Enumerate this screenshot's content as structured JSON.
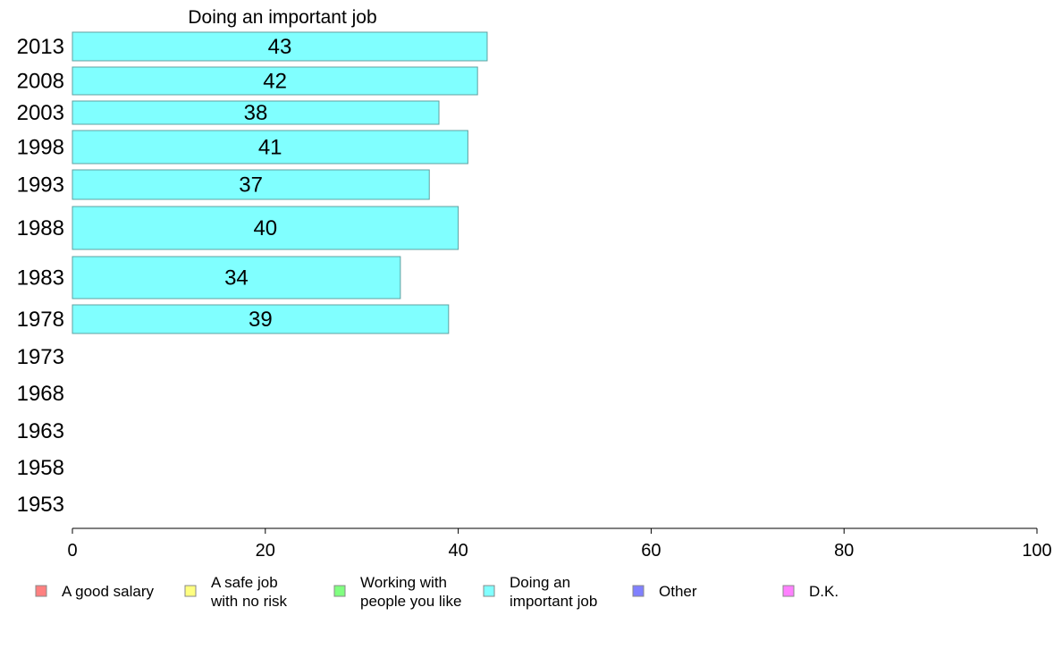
{
  "chart_data": {
    "type": "bar",
    "orientation": "horizontal",
    "title": "Doing an important job",
    "categories": [
      "2013",
      "2008",
      "2003",
      "1998",
      "1993",
      "1988",
      "1983",
      "1978",
      "1973",
      "1968",
      "1963",
      "1958",
      "1953"
    ],
    "series": [
      {
        "name": "Doing an important job",
        "color": "#80ffff",
        "values": [
          43,
          42,
          38,
          41,
          37,
          40,
          34,
          39,
          null,
          null,
          null,
          null,
          null
        ]
      }
    ],
    "xlim": [
      0,
      100
    ],
    "xticks": [
      "0",
      "20",
      "40",
      "60",
      "80",
      "100"
    ],
    "grid": false,
    "legend_position": "bottom",
    "legend": [
      {
        "label": [
          "A good salary"
        ],
        "color": "#ff8080"
      },
      {
        "label": [
          "A safe job",
          "with no risk"
        ],
        "color": "#ffff80"
      },
      {
        "label": [
          "Working with",
          "people you like"
        ],
        "color": "#80ff80"
      },
      {
        "label": [
          "Doing an",
          "important job"
        ],
        "color": "#80ffff"
      },
      {
        "label": [
          "Other"
        ],
        "color": "#8080ff"
      },
      {
        "label": [
          "D.K."
        ],
        "color": "#ff80ff"
      }
    ]
  }
}
